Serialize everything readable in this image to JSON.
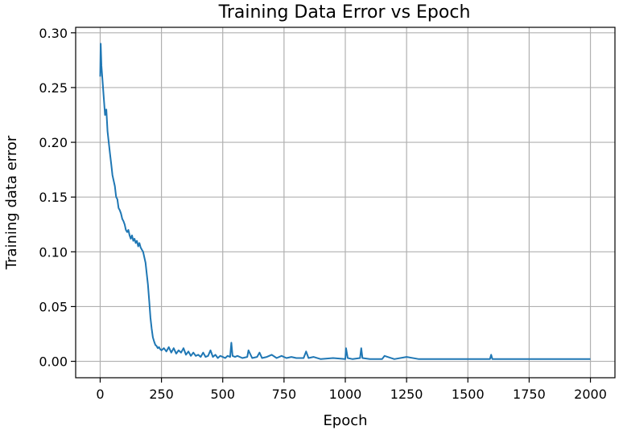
{
  "chart_data": {
    "type": "line",
    "title": "Training Data Error vs Epoch",
    "xlabel": "Epoch",
    "ylabel": "Training data error",
    "xlim": [
      -100,
      2100
    ],
    "ylim": [
      -0.015,
      0.305
    ],
    "xticks": [
      0,
      250,
      500,
      750,
      1000,
      1250,
      1500,
      1750,
      2000
    ],
    "xtick_labels": [
      "0",
      "250",
      "500",
      "750",
      "1000",
      "1250",
      "1500",
      "1750",
      "2000"
    ],
    "yticks": [
      0.0,
      0.05,
      0.1,
      0.15,
      0.2,
      0.25,
      0.3
    ],
    "ytick_labels": [
      "0.00",
      "0.05",
      "0.10",
      "0.15",
      "0.20",
      "0.25",
      "0.30"
    ],
    "grid": true,
    "series": [
      {
        "color": "#1f77b4",
        "x": [
          0,
          2,
          5,
          10,
          15,
          20,
          25,
          30,
          35,
          40,
          45,
          50,
          55,
          60,
          65,
          70,
          75,
          80,
          85,
          90,
          95,
          100,
          105,
          110,
          115,
          120,
          125,
          130,
          135,
          140,
          145,
          150,
          155,
          160,
          165,
          170,
          175,
          180,
          185,
          190,
          195,
          200,
          205,
          210,
          215,
          220,
          225,
          230,
          235,
          240,
          245,
          250,
          260,
          270,
          280,
          290,
          300,
          310,
          320,
          330,
          340,
          350,
          360,
          370,
          380,
          390,
          400,
          410,
          420,
          430,
          440,
          450,
          460,
          470,
          480,
          490,
          500,
          510,
          520,
          530,
          535,
          540,
          550,
          560,
          580,
          600,
          605,
          620,
          640,
          650,
          660,
          680,
          700,
          720,
          740,
          760,
          780,
          800,
          830,
          840,
          850,
          870,
          900,
          950,
          1000,
          1003,
          1010,
          1030,
          1060,
          1065,
          1070,
          1100,
          1150,
          1160,
          1200,
          1250,
          1300,
          1350,
          1400,
          1450,
          1500,
          1550,
          1590,
          1595,
          1600,
          1650,
          1700,
          1750,
          1800,
          1850,
          1900,
          1950,
          2000
        ],
        "values": [
          0.26,
          0.29,
          0.27,
          0.255,
          0.24,
          0.225,
          0.23,
          0.21,
          0.2,
          0.19,
          0.18,
          0.17,
          0.165,
          0.16,
          0.15,
          0.148,
          0.14,
          0.138,
          0.135,
          0.13,
          0.128,
          0.125,
          0.12,
          0.118,
          0.12,
          0.115,
          0.112,
          0.115,
          0.11,
          0.112,
          0.108,
          0.11,
          0.105,
          0.108,
          0.104,
          0.102,
          0.1,
          0.095,
          0.09,
          0.08,
          0.07,
          0.055,
          0.04,
          0.03,
          0.022,
          0.018,
          0.015,
          0.014,
          0.012,
          0.013,
          0.011,
          0.01,
          0.012,
          0.009,
          0.013,
          0.008,
          0.012,
          0.007,
          0.01,
          0.008,
          0.012,
          0.006,
          0.009,
          0.005,
          0.008,
          0.005,
          0.006,
          0.004,
          0.008,
          0.004,
          0.005,
          0.01,
          0.004,
          0.006,
          0.003,
          0.005,
          0.004,
          0.003,
          0.005,
          0.004,
          0.017,
          0.005,
          0.004,
          0.005,
          0.003,
          0.004,
          0.01,
          0.003,
          0.004,
          0.008,
          0.003,
          0.004,
          0.006,
          0.003,
          0.005,
          0.003,
          0.004,
          0.003,
          0.003,
          0.009,
          0.003,
          0.004,
          0.002,
          0.003,
          0.002,
          0.012,
          0.003,
          0.002,
          0.003,
          0.012,
          0.003,
          0.002,
          0.002,
          0.005,
          0.002,
          0.004,
          0.002,
          0.002,
          0.002,
          0.002,
          0.002,
          0.002,
          0.002,
          0.006,
          0.002,
          0.002,
          0.002,
          0.002,
          0.002,
          0.002,
          0.002,
          0.002,
          0.002
        ]
      }
    ]
  }
}
